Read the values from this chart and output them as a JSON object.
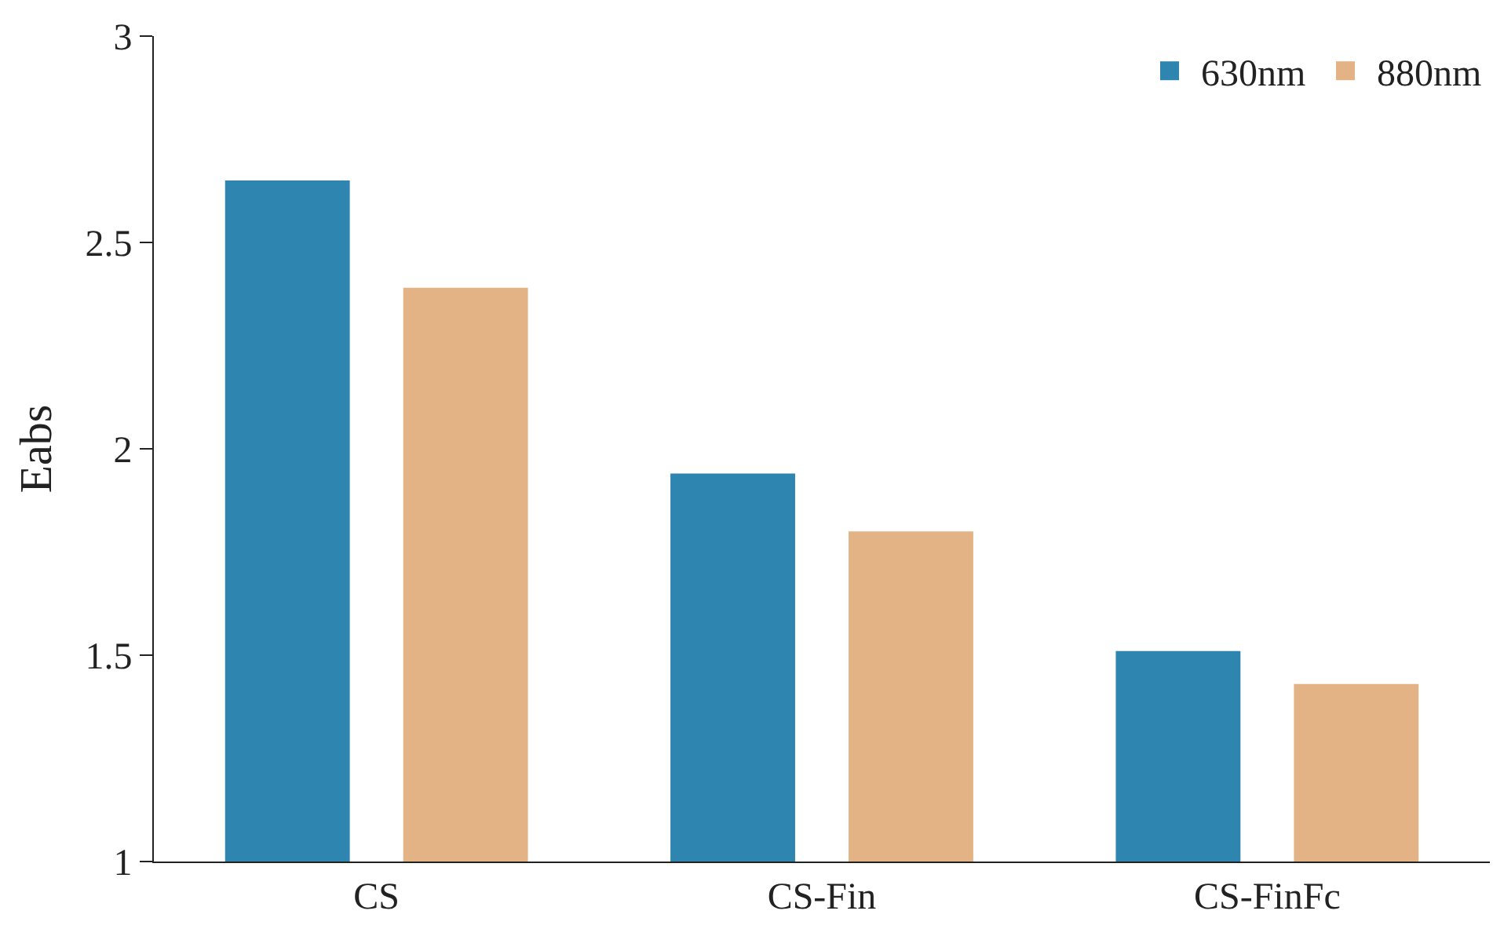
{
  "chart_data": {
    "type": "bar",
    "ylabel": "Eabs",
    "categories": [
      "CS",
      "CS-Fin",
      "CS-FinFc"
    ],
    "series": [
      {
        "name": "630nm",
        "color": "#2e86b0",
        "values": [
          2.65,
          1.94,
          1.51
        ]
      },
      {
        "name": "880nm",
        "color": "#e3b385",
        "values": [
          2.39,
          1.8,
          1.43
        ]
      }
    ],
    "ylim": [
      1,
      3
    ],
    "yticks": [
      1,
      1.5,
      2,
      2.5,
      3
    ],
    "legend": "top right"
  }
}
